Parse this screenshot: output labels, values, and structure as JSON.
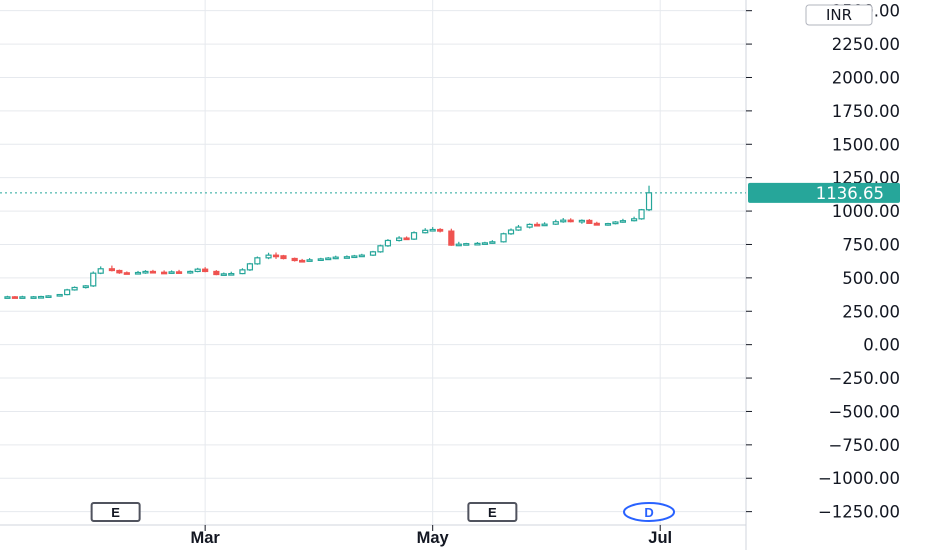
{
  "currency_button": {
    "label": "INR"
  },
  "last_price": {
    "label": "1136.65",
    "value": 1136.65
  },
  "colors": {
    "up": "#26a69a",
    "down": "#ef5350",
    "grid": "#e6e9ee",
    "axis": "#d1d4dc",
    "event": "#2962ff"
  },
  "event_markers": [
    {
      "label": "E",
      "type": "earnings",
      "date": "2024-02-06"
    },
    {
      "label": "E",
      "type": "earnings",
      "date": "2024-05-17"
    },
    {
      "label": "D",
      "type": "dividend",
      "date": "2024-06-28"
    }
  ],
  "chart_data": {
    "type": "candlestick",
    "y_ticks": [
      "2500.00",
      "2250.00",
      "2000.00",
      "1750.00",
      "1500.00",
      "1250.00",
      "1000.00",
      "750.00",
      "500.00",
      "250.00",
      "0.00",
      "−250.00",
      "−500.00",
      "−750.00",
      "−1000.00",
      "−1250.00"
    ],
    "x_ticks": [
      "Mar",
      "May",
      "Jul"
    ],
    "ylim": [
      -1350,
      2580
    ],
    "xlim": [
      "2024-01-06",
      "2024-07-24"
    ],
    "grid": true,
    "series": [
      {
        "x": [
          "2024-01-08",
          "2024-01-10",
          "2024-01-12",
          "2024-01-15",
          "2024-01-17",
          "2024-01-19",
          "2024-01-22",
          "2024-01-24",
          "2024-01-26",
          "2024-01-29",
          "2024-01-31",
          "2024-02-02",
          "2024-02-05",
          "2024-02-07",
          "2024-02-09",
          "2024-02-12",
          "2024-02-14",
          "2024-02-16",
          "2024-02-19",
          "2024-02-21",
          "2024-02-23",
          "2024-02-26",
          "2024-02-28",
          "2024-03-01",
          "2024-03-04",
          "2024-03-06",
          "2024-03-08",
          "2024-03-11",
          "2024-03-13",
          "2024-03-15",
          "2024-03-18",
          "2024-03-20",
          "2024-03-22",
          "2024-03-25",
          "2024-03-27",
          "2024-03-29",
          "2024-04-01",
          "2024-04-03",
          "2024-04-05",
          "2024-04-08",
          "2024-04-10",
          "2024-04-12",
          "2024-04-15",
          "2024-04-17",
          "2024-04-19",
          "2024-04-22",
          "2024-04-24",
          "2024-04-26",
          "2024-04-29",
          "2024-05-01",
          "2024-05-03",
          "2024-05-06",
          "2024-05-08",
          "2024-05-10",
          "2024-05-13",
          "2024-05-15",
          "2024-05-17",
          "2024-05-20",
          "2024-05-22",
          "2024-05-24",
          "2024-05-27",
          "2024-05-29",
          "2024-05-31",
          "2024-06-03",
          "2024-06-05",
          "2024-06-07",
          "2024-06-10",
          "2024-06-12",
          "2024-06-14",
          "2024-06-17",
          "2024-06-19",
          "2024-06-21",
          "2024-06-24",
          "2024-06-26",
          "2024-06-28"
        ],
        "open": [
          358,
          358,
          357,
          358,
          358,
          360,
          365,
          375,
          410,
          428,
          440,
          535,
          568,
          555,
          538,
          532,
          540,
          548,
          542,
          540,
          545,
          538,
          548,
          565,
          548,
          525,
          530,
          532,
          560,
          605,
          650,
          670,
          665,
          645,
          630,
          628,
          635,
          642,
          648,
          655,
          658,
          664,
          670,
          695,
          740,
          780,
          798,
          790,
          838,
          856,
          862,
          850,
          745,
          752,
          756,
          758,
          762,
          770,
          830,
          858,
          880,
          900,
          895,
          902,
          920,
          932,
          922,
          930,
          908,
          895,
          906,
          918,
          928,
          942,
          1010
        ],
        "high": [
          366,
          364,
          366,
          364,
          366,
          370,
          378,
          418,
          436,
          446,
          548,
          586,
          592,
          562,
          548,
          552,
          558,
          560,
          556,
          556,
          560,
          555,
          575,
          580,
          558,
          540,
          546,
          572,
          612,
          660,
          688,
          690,
          672,
          652,
          642,
          648,
          650,
          656,
          666,
          668,
          672,
          680,
          702,
          748,
          790,
          812,
          810,
          848,
          872,
          880,
          872,
          868,
          770,
          762,
          768,
          770,
          782,
          838,
          870,
          896,
          908,
          916,
          916,
          936,
          948,
          946,
          938,
          940,
          920,
          912,
          925,
          942,
          958,
          1016,
          1190
        ],
        "low": [
          350,
          352,
          350,
          352,
          351,
          354,
          360,
          370,
          404,
          420,
          432,
          528,
          548,
          530,
          528,
          525,
          530,
          536,
          532,
          530,
          532,
          530,
          542,
          542,
          520,
          518,
          522,
          528,
          552,
          598,
          640,
          642,
          638,
          622,
          620,
          622,
          628,
          634,
          640,
          648,
          650,
          656,
          664,
          688,
          732,
          772,
          788,
          784,
          832,
          848,
          840,
          740,
          738,
          745,
          748,
          752,
          756,
          764,
          822,
          852,
          870,
          886,
          888,
          896,
          912,
          915,
          905,
          904,
          895,
          890,
          900,
          912,
          922,
          935,
          1000
        ],
        "close": [
          358,
          357,
          358,
          358,
          360,
          365,
          375,
          410,
          428,
          440,
          535,
          568,
          555,
          538,
          532,
          540,
          548,
          542,
          540,
          545,
          538,
          548,
          565,
          548,
          525,
          530,
          532,
          560,
          605,
          650,
          670,
          665,
          645,
          630,
          628,
          635,
          642,
          648,
          655,
          658,
          664,
          670,
          695,
          740,
          780,
          798,
          790,
          838,
          856,
          862,
          850,
          745,
          752,
          756,
          758,
          762,
          770,
          830,
          858,
          880,
          900,
          895,
          902,
          920,
          932,
          922,
          930,
          908,
          895,
          906,
          918,
          928,
          942,
          1010,
          1136.65
        ]
      }
    ]
  }
}
